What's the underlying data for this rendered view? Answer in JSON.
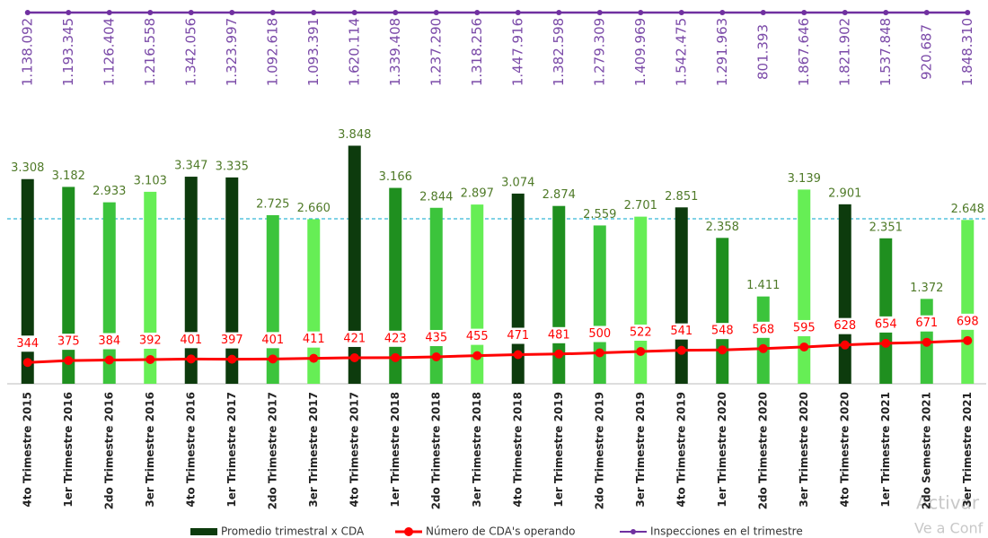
{
  "chart_data": {
    "type": "bar",
    "categories": [
      "4to Trimestre 2015",
      "1er Trimestre 2016",
      "2do Trimestre 2016",
      "3er Trimestre 2016",
      "4to Trimestre 2016",
      "1er Trimestre 2017",
      "2do Trimestre 2017",
      "3er Trimestre 2017",
      "4to Trimestre 2017",
      "1er Trimestre 2018",
      "2do Trimestre 2018",
      "3er Trimestre 2018",
      "4to Trimestre 2018",
      "1er Trimestre 2019",
      "2do Trimestre 2019",
      "3er Trimestre 2019",
      "4to Trimestre 2019",
      "1er Trimestre 2020",
      "2do Trimestre 2020",
      "3er Trimestre 2020",
      "4to Trimestre 2020",
      "1er Trimestre 2021",
      "2do Semestre 2021",
      "3er Trimestre 2021"
    ],
    "ylim": [
      0,
      4000
    ],
    "series": [
      {
        "name": "Promedio trimestral x CDA",
        "type": "bar",
        "color": "#0d3b0d",
        "colors": [
          "#0d3b0d",
          "#1f8f1f",
          "#3cc43c",
          "#66ee55",
          "#0d3b0d",
          "#0d3b0d",
          "#3cc43c",
          "#66ee55",
          "#0d3b0d",
          "#1f8f1f",
          "#3cc43c",
          "#66ee55",
          "#0d3b0d",
          "#1f8f1f",
          "#3cc43c",
          "#66ee55",
          "#0d3b0d",
          "#1f8f1f",
          "#3cc43c",
          "#66ee55",
          "#0d3b0d",
          "#1f8f1f",
          "#3cc43c",
          "#66ee55"
        ],
        "values": [
          3308,
          3182,
          2933,
          3103,
          3347,
          3335,
          2725,
          2660,
          3848,
          3166,
          2844,
          2897,
          3074,
          2874,
          2559,
          2701,
          2851,
          2358,
          1411,
          3139,
          2901,
          2351,
          1372,
          2648
        ],
        "value_labels": [
          "3.308",
          "3.182",
          "2.933",
          "3.103",
          "3.347",
          "3.335",
          "2.725",
          "2.660",
          "3.848",
          "3.166",
          "2.844",
          "2.897",
          "3.074",
          "2.874",
          "2.559",
          "2.701",
          "2.851",
          "2.358",
          "1.411",
          "3.139",
          "2.901",
          "2.351",
          "1.372",
          "2.648"
        ]
      },
      {
        "name": "Número de CDA's operando",
        "type": "line",
        "color": "#ff0000",
        "values": [
          344,
          375,
          384,
          392,
          401,
          397,
          401,
          411,
          421,
          423,
          435,
          455,
          471,
          481,
          500,
          522,
          541,
          548,
          568,
          595,
          628,
          654,
          671,
          698
        ]
      },
      {
        "name": "Inspecciones en el trimestre",
        "type": "top-line",
        "color": "#7030a0",
        "values": [
          1138092,
          1193345,
          1126404,
          1216558,
          1342056,
          1323997,
          1092618,
          1093391,
          1620114,
          1339408,
          1237290,
          1318256,
          1447916,
          1382598,
          1279309,
          1409969,
          1542475,
          1291963,
          801393,
          1867646,
          1821902,
          1537848,
          920687,
          1848310
        ],
        "value_labels": [
          "1.138.092",
          "1.193.345",
          "1.126.404",
          "1.216.558",
          "1.342.056",
          "1.323.997",
          "1.092.618",
          "1.093.391",
          "1.620.114",
          "1.339.408",
          "1.237.290",
          "1.318.256",
          "1.447.916",
          "1.382.598",
          "1.279.309",
          "1.409.969",
          "1.542.475",
          "1.291.963",
          "801.393",
          "1.867.646",
          "1.821.902",
          "1.537.848",
          "920.687",
          "1.848.310"
        ]
      }
    ]
  },
  "watermark": [
    "Activar",
    "Ve a Conf"
  ]
}
